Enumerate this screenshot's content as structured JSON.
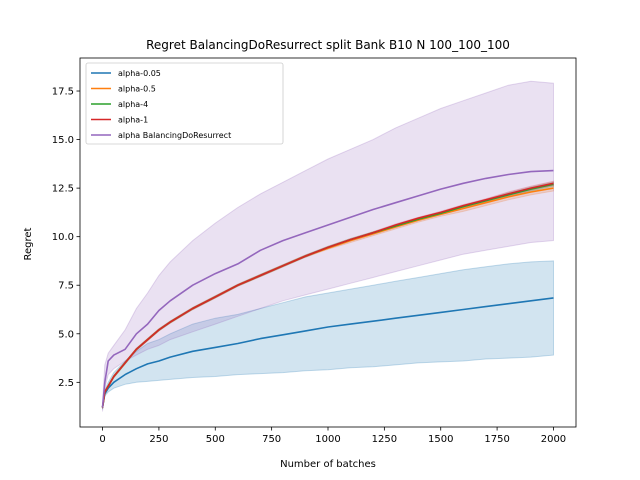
{
  "chart_data": {
    "type": "line",
    "title": "Regret BalancingDoResurrect split Bank B10 N 100_100_100",
    "xlabel": "Number of batches",
    "ylabel": "Regret",
    "xlim": [
      -100,
      2100
    ],
    "ylim": [
      0.2,
      19.2
    ],
    "xticks": [
      0,
      250,
      500,
      750,
      1000,
      1250,
      1500,
      1750,
      2000
    ],
    "yticks": [
      2.5,
      5.0,
      7.5,
      10.0,
      12.5,
      15.0,
      17.5
    ],
    "ytick_labels": [
      "2.5",
      "5.0",
      "7.5",
      "10.0",
      "12.5",
      "15.0",
      "17.5"
    ],
    "legend_position": "upper-left",
    "x": [
      0,
      10,
      25,
      50,
      100,
      150,
      200,
      250,
      300,
      400,
      500,
      600,
      700,
      800,
      900,
      1000,
      1100,
      1200,
      1300,
      1400,
      1500,
      1600,
      1700,
      1800,
      1900,
      2000
    ],
    "series": [
      {
        "name": "alpha-0.05",
        "color": "#1f77b4",
        "values": [
          1.2,
          1.9,
          2.2,
          2.5,
          2.9,
          3.2,
          3.45,
          3.6,
          3.8,
          4.1,
          4.3,
          4.5,
          4.75,
          4.95,
          5.15,
          5.35,
          5.5,
          5.65,
          5.8,
          5.95,
          6.1,
          6.25,
          6.4,
          6.55,
          6.7,
          6.85
        ],
        "band_lower": [
          1.1,
          1.8,
          2.0,
          2.2,
          2.4,
          2.5,
          2.55,
          2.6,
          2.65,
          2.75,
          2.8,
          2.9,
          2.95,
          3.0,
          3.1,
          3.15,
          3.25,
          3.3,
          3.4,
          3.5,
          3.55,
          3.6,
          3.7,
          3.75,
          3.8,
          3.9
        ],
        "band_upper": [
          1.3,
          2.1,
          2.5,
          3.0,
          3.6,
          4.1,
          4.5,
          4.7,
          5.0,
          5.5,
          5.8,
          6.0,
          6.3,
          6.6,
          6.9,
          7.1,
          7.3,
          7.5,
          7.7,
          7.9,
          8.1,
          8.3,
          8.45,
          8.6,
          8.7,
          8.75
        ]
      },
      {
        "name": "alpha-0.5",
        "color": "#ff7f0e",
        "values": [
          1.2,
          2.0,
          2.3,
          2.8,
          3.5,
          4.2,
          4.7,
          5.2,
          5.6,
          6.3,
          6.9,
          7.5,
          8.0,
          8.5,
          9.0,
          9.4,
          9.8,
          10.15,
          10.5,
          10.85,
          11.15,
          11.45,
          11.75,
          12.05,
          12.3,
          12.5
        ],
        "band_lower": [
          1.15,
          1.95,
          2.25,
          2.75,
          3.45,
          4.15,
          4.65,
          5.15,
          5.55,
          6.25,
          6.85,
          7.45,
          7.95,
          8.45,
          8.95,
          9.35,
          9.7,
          10.05,
          10.4,
          10.75,
          11.05,
          11.3,
          11.6,
          11.9,
          12.15,
          12.35
        ],
        "band_upper": [
          1.25,
          2.05,
          2.35,
          2.85,
          3.55,
          4.25,
          4.75,
          5.25,
          5.65,
          6.35,
          6.95,
          7.55,
          8.05,
          8.55,
          9.05,
          9.45,
          9.85,
          10.25,
          10.6,
          10.95,
          11.25,
          11.55,
          11.9,
          12.2,
          12.45,
          12.65
        ]
      },
      {
        "name": "alpha-4",
        "color": "#2ca02c",
        "values": [
          1.2,
          2.0,
          2.3,
          2.8,
          3.5,
          4.2,
          4.7,
          5.2,
          5.6,
          6.3,
          6.9,
          7.5,
          8.0,
          8.5,
          9.0,
          9.45,
          9.85,
          10.2,
          10.55,
          10.9,
          11.2,
          11.55,
          11.85,
          12.15,
          12.45,
          12.7
        ],
        "band_lower": [
          1.15,
          1.95,
          2.25,
          2.75,
          3.45,
          4.15,
          4.65,
          5.15,
          5.55,
          6.25,
          6.85,
          7.45,
          7.95,
          8.45,
          8.95,
          9.4,
          9.8,
          10.15,
          10.5,
          10.85,
          11.15,
          11.45,
          11.75,
          12.05,
          12.35,
          12.6
        ],
        "band_upper": [
          1.25,
          2.05,
          2.35,
          2.85,
          3.55,
          4.25,
          4.75,
          5.25,
          5.65,
          6.35,
          6.95,
          7.55,
          8.05,
          8.55,
          9.05,
          9.5,
          9.9,
          10.25,
          10.6,
          10.95,
          11.25,
          11.6,
          11.9,
          12.25,
          12.55,
          12.8
        ]
      },
      {
        "name": "alpha-1",
        "color": "#d62728",
        "values": [
          1.2,
          2.0,
          2.3,
          2.8,
          3.5,
          4.2,
          4.7,
          5.2,
          5.6,
          6.3,
          6.9,
          7.5,
          8.0,
          8.5,
          9.0,
          9.45,
          9.85,
          10.2,
          10.6,
          10.95,
          11.25,
          11.6,
          11.9,
          12.2,
          12.5,
          12.75
        ],
        "band_lower": [
          1.15,
          1.95,
          2.25,
          2.75,
          3.45,
          4.15,
          4.65,
          5.15,
          5.55,
          6.25,
          6.85,
          7.45,
          7.95,
          8.45,
          8.95,
          9.4,
          9.8,
          10.15,
          10.55,
          10.9,
          11.2,
          11.5,
          11.8,
          12.1,
          12.4,
          12.65
        ],
        "band_upper": [
          1.25,
          2.05,
          2.35,
          2.85,
          3.55,
          4.25,
          4.75,
          5.25,
          5.65,
          6.35,
          6.95,
          7.55,
          8.05,
          8.55,
          9.05,
          9.5,
          9.9,
          10.25,
          10.65,
          11.0,
          11.3,
          11.65,
          11.95,
          12.3,
          12.6,
          12.85
        ]
      },
      {
        "name": "alpha BalancingDoResurrect",
        "color": "#9467bd",
        "values": [
          1.2,
          2.5,
          3.6,
          3.9,
          4.2,
          5.0,
          5.5,
          6.2,
          6.7,
          7.5,
          8.1,
          8.6,
          9.3,
          9.8,
          10.2,
          10.6,
          11.0,
          11.4,
          11.75,
          12.1,
          12.45,
          12.75,
          13.0,
          13.2,
          13.35,
          13.4
        ],
        "band_lower": [
          1.0,
          2.2,
          2.9,
          3.2,
          3.6,
          3.9,
          4.2,
          4.4,
          4.7,
          5.1,
          5.5,
          5.9,
          6.3,
          6.7,
          7.0,
          7.3,
          7.6,
          7.9,
          8.2,
          8.5,
          8.8,
          9.1,
          9.3,
          9.5,
          9.7,
          9.8
        ],
        "band_upper": [
          1.4,
          3.4,
          4.0,
          4.4,
          5.2,
          6.3,
          7.1,
          8.0,
          8.7,
          9.8,
          10.7,
          11.5,
          12.2,
          12.8,
          13.4,
          14.0,
          14.5,
          15.0,
          15.6,
          16.1,
          16.6,
          17.0,
          17.4,
          17.8,
          18.0,
          17.9
        ]
      }
    ]
  }
}
